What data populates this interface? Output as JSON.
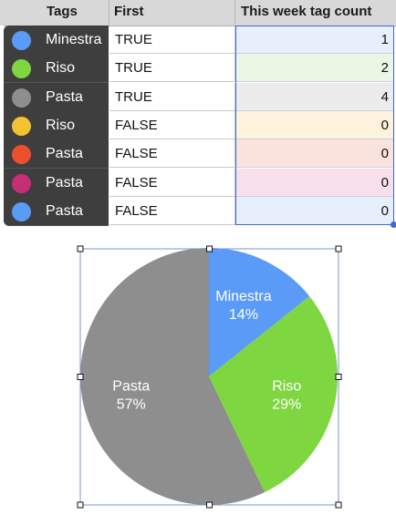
{
  "table": {
    "headers": {
      "tags": "Tags",
      "first": "First",
      "count": "This week tag count"
    },
    "rows": [
      {
        "tag": "Minestra",
        "dot_color": "#5b9bf8",
        "first": "TRUE",
        "count": "1",
        "count_bg": "#e7effc"
      },
      {
        "tag": "Riso",
        "dot_color": "#7ed640",
        "first": "TRUE",
        "count": "2",
        "count_bg": "#eaf7e3"
      },
      {
        "tag": "Pasta",
        "dot_color": "#8e8e8e",
        "first": "TRUE",
        "count": "4",
        "count_bg": "#ececec"
      },
      {
        "tag": "Riso",
        "dot_color": "#f2c231",
        "first": "FALSE",
        "count": "0",
        "count_bg": "#fdf3dc"
      },
      {
        "tag": "Pasta",
        "dot_color": "#ec4f2c",
        "first": "FALSE",
        "count": "0",
        "count_bg": "#fbe3dd"
      },
      {
        "tag": "Pasta",
        "dot_color": "#c62f78",
        "first": "FALSE",
        "count": "0",
        "count_bg": "#f7e0ec"
      },
      {
        "tag": "Pasta",
        "dot_color": "#5b9bf8",
        "first": "FALSE",
        "count": "0",
        "count_bg": "#e7effc"
      }
    ]
  },
  "chart_data": {
    "type": "pie",
    "slices": [
      {
        "name": "Minestra",
        "value": 1,
        "label_name": "Minestra",
        "label_pct": "14%",
        "color": "#5b9bf8"
      },
      {
        "name": "Riso",
        "value": 2,
        "label_name": "Riso",
        "label_pct": "29%",
        "color": "#7ed640"
      },
      {
        "name": "Pasta",
        "value": 4,
        "label_name": "Pasta",
        "label_pct": "57%",
        "color": "#8e8e8e"
      }
    ],
    "start_angle": "12 o'clock",
    "direction": "clockwise",
    "legend": "none",
    "selected": true
  }
}
